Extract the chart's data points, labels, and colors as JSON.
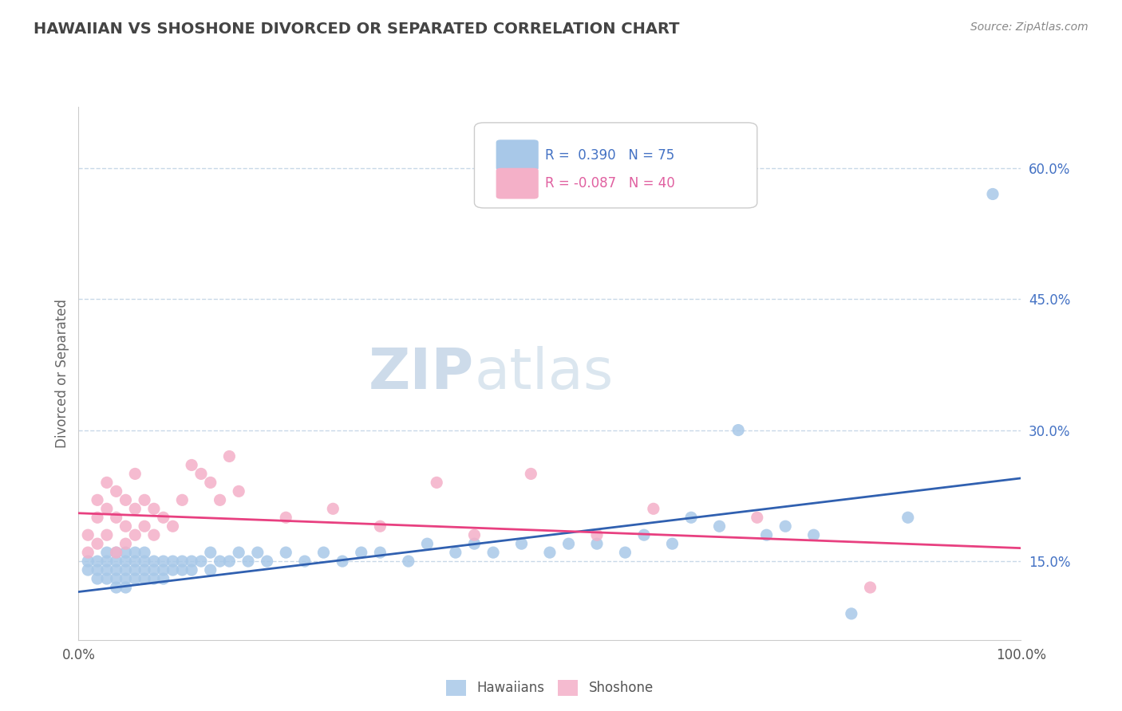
{
  "title": "HAWAIIAN VS SHOSHONE DIVORCED OR SEPARATED CORRELATION CHART",
  "source": "Source: ZipAtlas.com",
  "ylabel": "Divorced or Separated",
  "yticks_right": [
    0.15,
    0.3,
    0.45,
    0.6
  ],
  "ytick_labels_right": [
    "15.0%",
    "30.0%",
    "45.0%",
    "60.0%"
  ],
  "xmin": 0.0,
  "xmax": 1.0,
  "ymin": 0.06,
  "ymax": 0.67,
  "watermark_zip": "ZIP",
  "watermark_atlas": "atlas",
  "blue_color": "#a8c8e8",
  "pink_color": "#f4b0c8",
  "blue_line_color": "#3060b0",
  "pink_line_color": "#e84080",
  "hawaiians_scatter_x": [
    0.01,
    0.01,
    0.02,
    0.02,
    0.02,
    0.03,
    0.03,
    0.03,
    0.03,
    0.04,
    0.04,
    0.04,
    0.04,
    0.04,
    0.05,
    0.05,
    0.05,
    0.05,
    0.05,
    0.06,
    0.06,
    0.06,
    0.06,
    0.07,
    0.07,
    0.07,
    0.07,
    0.08,
    0.08,
    0.08,
    0.09,
    0.09,
    0.09,
    0.1,
    0.1,
    0.11,
    0.11,
    0.12,
    0.12,
    0.13,
    0.14,
    0.14,
    0.15,
    0.16,
    0.17,
    0.18,
    0.19,
    0.2,
    0.22,
    0.24,
    0.26,
    0.28,
    0.3,
    0.32,
    0.35,
    0.37,
    0.4,
    0.42,
    0.44,
    0.47,
    0.5,
    0.52,
    0.55,
    0.58,
    0.6,
    0.63,
    0.65,
    0.68,
    0.7,
    0.73,
    0.75,
    0.78,
    0.82,
    0.88,
    0.97
  ],
  "hawaiians_scatter_y": [
    0.14,
    0.15,
    0.13,
    0.14,
    0.15,
    0.13,
    0.14,
    0.15,
    0.16,
    0.12,
    0.13,
    0.14,
    0.15,
    0.16,
    0.12,
    0.13,
    0.14,
    0.15,
    0.16,
    0.13,
    0.14,
    0.15,
    0.16,
    0.13,
    0.14,
    0.15,
    0.16,
    0.13,
    0.14,
    0.15,
    0.13,
    0.14,
    0.15,
    0.14,
    0.15,
    0.14,
    0.15,
    0.14,
    0.15,
    0.15,
    0.14,
    0.16,
    0.15,
    0.15,
    0.16,
    0.15,
    0.16,
    0.15,
    0.16,
    0.15,
    0.16,
    0.15,
    0.16,
    0.16,
    0.15,
    0.17,
    0.16,
    0.17,
    0.16,
    0.17,
    0.16,
    0.17,
    0.17,
    0.16,
    0.18,
    0.17,
    0.2,
    0.19,
    0.3,
    0.18,
    0.19,
    0.18,
    0.09,
    0.2,
    0.57
  ],
  "shoshone_scatter_x": [
    0.01,
    0.01,
    0.02,
    0.02,
    0.02,
    0.03,
    0.03,
    0.03,
    0.04,
    0.04,
    0.04,
    0.05,
    0.05,
    0.05,
    0.06,
    0.06,
    0.06,
    0.07,
    0.07,
    0.08,
    0.08,
    0.09,
    0.1,
    0.11,
    0.12,
    0.13,
    0.14,
    0.15,
    0.16,
    0.17,
    0.22,
    0.27,
    0.32,
    0.38,
    0.42,
    0.48,
    0.55,
    0.61,
    0.72,
    0.84
  ],
  "shoshone_scatter_y": [
    0.16,
    0.18,
    0.17,
    0.2,
    0.22,
    0.18,
    0.21,
    0.24,
    0.16,
    0.2,
    0.23,
    0.17,
    0.19,
    0.22,
    0.18,
    0.21,
    0.25,
    0.19,
    0.22,
    0.18,
    0.21,
    0.2,
    0.19,
    0.22,
    0.26,
    0.25,
    0.24,
    0.22,
    0.27,
    0.23,
    0.2,
    0.21,
    0.19,
    0.24,
    0.18,
    0.25,
    0.18,
    0.21,
    0.2,
    0.12
  ],
  "blue_line_y_start": 0.115,
  "blue_line_y_end": 0.245,
  "pink_line_y_start": 0.205,
  "pink_line_y_end": 0.165,
  "bg_color": "#ffffff",
  "grid_color": "#c8d8e8",
  "title_color": "#444444",
  "source_color": "#888888",
  "ylabel_color": "#666666",
  "right_tick_color": "#4472c4"
}
